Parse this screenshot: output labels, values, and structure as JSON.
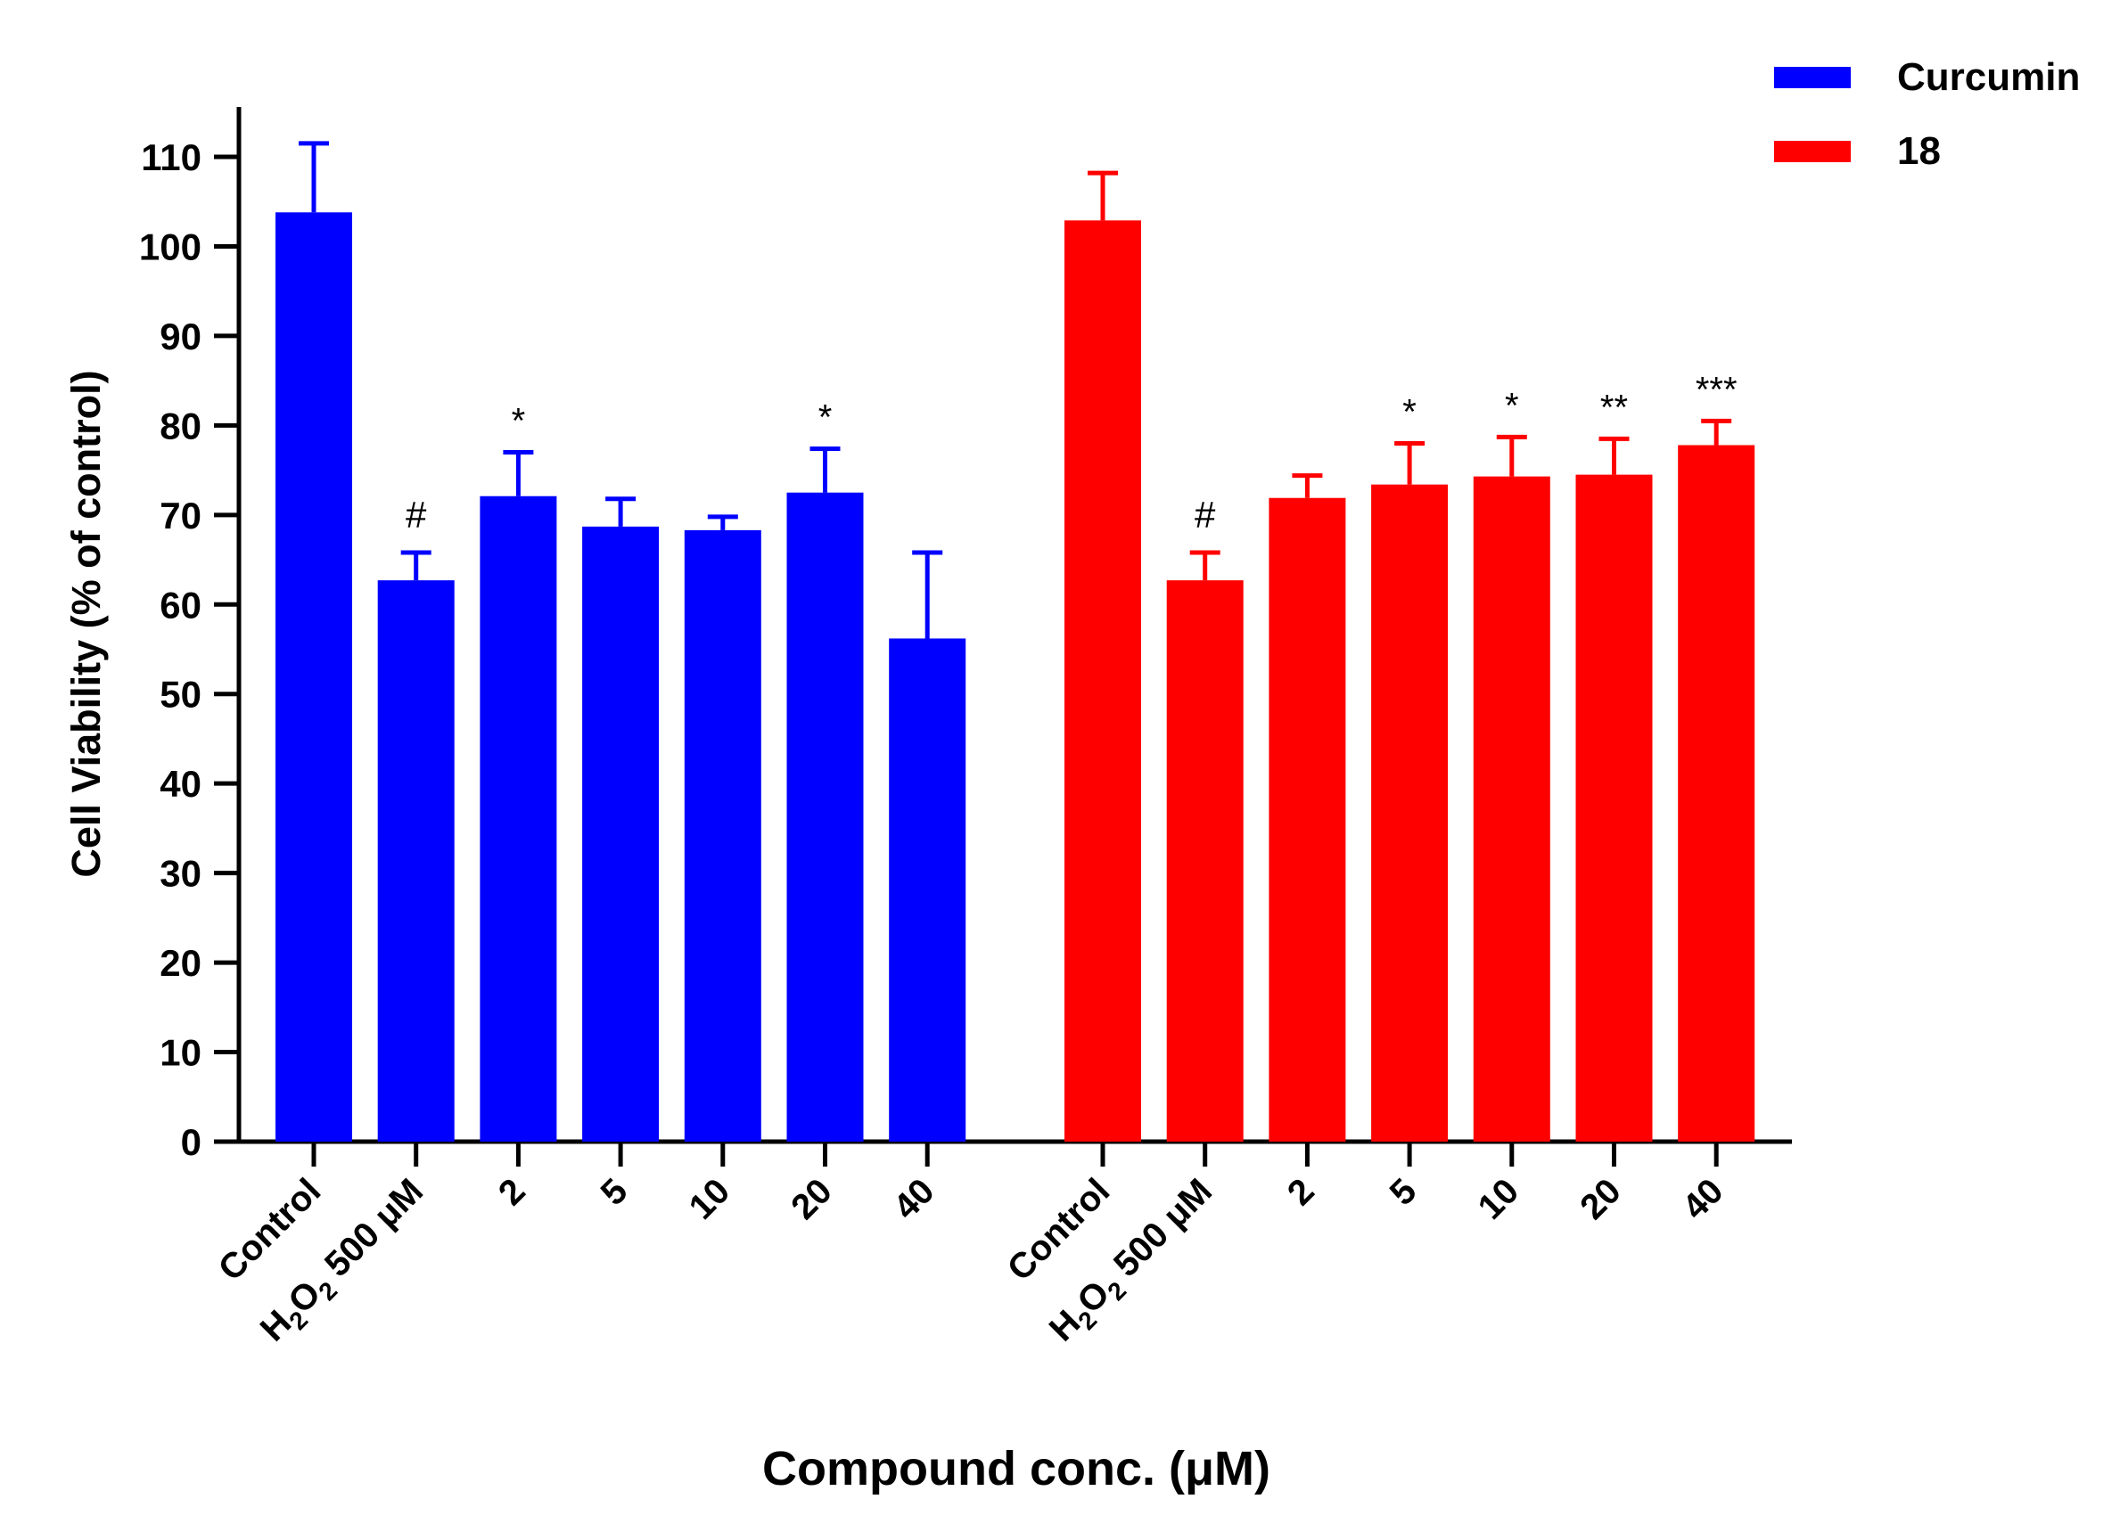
{
  "chart_data": {
    "type": "bar",
    "title": "",
    "xlabel": "Compound conc. (μM)",
    "ylabel": "Cell Viability (% of control)",
    "ylim": [
      0,
      110
    ],
    "yticks": [
      0,
      10,
      20,
      30,
      40,
      50,
      60,
      70,
      80,
      90,
      100,
      110
    ],
    "legend": {
      "position": "top-right"
    },
    "groups": [
      {
        "name": "Curcumin",
        "color": "#0000ff",
        "categories": [
          "Control",
          "H2O2 500 μM",
          "2",
          "5",
          "10",
          "20",
          "40"
        ],
        "values": [
          103.8,
          62.7,
          72.1,
          68.7,
          68.3,
          72.5,
          56.2
        ],
        "errors": [
          7.7,
          3.1,
          4.9,
          3.1,
          1.5,
          4.9,
          9.6
        ],
        "annotations": [
          "",
          "#",
          "*",
          "",
          "",
          "*",
          ""
        ]
      },
      {
        "name": "18",
        "color": "#ff0000",
        "categories": [
          "Control",
          "H2O2 500 μM",
          "2",
          "5",
          "10",
          "20",
          "40"
        ],
        "values": [
          102.9,
          62.7,
          71.9,
          73.4,
          74.3,
          74.5,
          77.8
        ],
        "errors": [
          5.3,
          3.1,
          2.5,
          4.6,
          4.4,
          4.0,
          2.7
        ],
        "annotations": [
          "",
          "#",
          "",
          "*",
          "*",
          "**",
          "***"
        ]
      }
    ],
    "h2o2_label": {
      "prefix": "H",
      "sub1": "2",
      "mid": "O",
      "sub2": "2",
      "suffix": " 500 μM"
    }
  }
}
